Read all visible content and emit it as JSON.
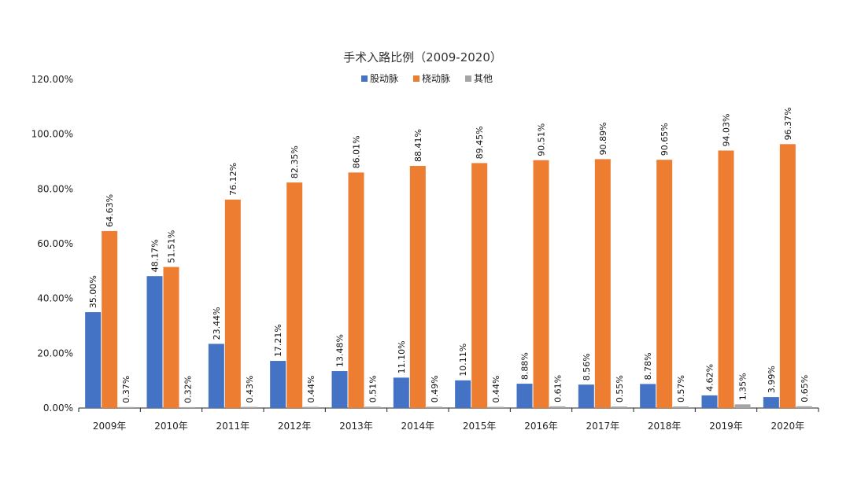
{
  "chart_data": {
    "type": "bar",
    "title": "手术入路比例（2009-2020）",
    "categories": [
      "2009年",
      "2010年",
      "2011年",
      "2012年",
      "2013年",
      "2014年",
      "2015年",
      "2016年",
      "2017年",
      "2018年",
      "2019年",
      "2020年"
    ],
    "series": [
      {
        "name": "股动脉",
        "color": "#4472C4",
        "values": [
          35.0,
          48.17,
          23.44,
          17.21,
          13.48,
          11.1,
          10.11,
          8.88,
          8.56,
          8.78,
          4.62,
          3.99
        ],
        "labels": [
          "35.00%",
          "48.17%",
          "23.44%",
          "17.21%",
          "13.48%",
          "11.10%",
          "10.11%",
          "8.88%",
          "8.56%",
          "8.78%",
          "4.62%",
          "3.99%"
        ]
      },
      {
        "name": "桡动脉",
        "color": "#ED7D31",
        "values": [
          64.63,
          51.51,
          76.12,
          82.35,
          86.01,
          88.41,
          89.45,
          90.51,
          90.89,
          90.65,
          94.03,
          96.37
        ],
        "labels": [
          "64.63%",
          "51.51%",
          "76.12%",
          "82.35%",
          "86.01%",
          "88.41%",
          "89.45%",
          "90.51%",
          "90.89%",
          "90.65%",
          "94.03%",
          "96.37%"
        ]
      },
      {
        "name": "其他",
        "color": "#A5A5A5",
        "values": [
          0.37,
          0.32,
          0.43,
          0.44,
          0.51,
          0.49,
          0.44,
          0.61,
          0.55,
          0.57,
          1.35,
          0.65
        ],
        "labels": [
          "0.37%",
          "0.32%",
          "0.43%",
          "0.44%",
          "0.51%",
          "0.49%",
          "0.44%",
          "0.61%",
          "0.55%",
          "0.57%",
          "1.35%",
          "0.65%"
        ]
      }
    ],
    "ylim": [
      0,
      120
    ],
    "yticks": [
      "0.00%",
      "20.00%",
      "40.00%",
      "60.00%",
      "80.00%",
      "100.00%",
      "120.00%"
    ],
    "grid": false,
    "legend_position": "top-center"
  }
}
